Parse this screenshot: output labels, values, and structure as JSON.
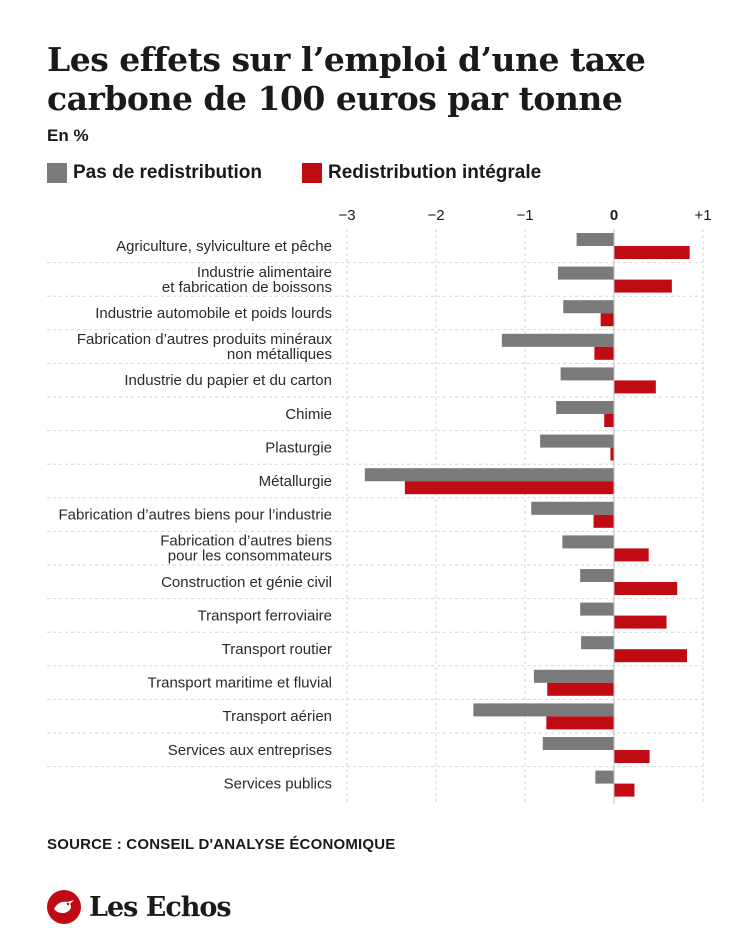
{
  "header": {
    "title_line1": "Les effets sur l’emploi d’une taxe",
    "title_line2": "carbone de 100 euros par tonne",
    "unit": "En %"
  },
  "legend": [
    {
      "label": "Pas de redistribution",
      "color": "#7a7a7a"
    },
    {
      "label": "Redistribution intégrale",
      "color": "#c00a14"
    }
  ],
  "footer": {
    "source": "SOURCE : CONSEIL D'ANALYSE ÉCONOMIQUE",
    "brand": "Les Echos",
    "brand_color": "#c00a14"
  },
  "chart_data": {
    "type": "bar",
    "orientation": "horizontal",
    "title": "Les effets sur l’emploi d’une taxe carbone de 100 euros par tonne",
    "unit": "En %",
    "xlim": [
      -3,
      1
    ],
    "ticks": [
      -3,
      -2,
      -1,
      0,
      1
    ],
    "tick_labels": [
      "−3",
      "−2",
      "−1",
      "0",
      "+1"
    ],
    "grid": true,
    "legend_position": "top-left",
    "categories": [
      [
        "Agriculture, sylviculture et pêche"
      ],
      [
        "Industrie alimentaire",
        "et fabrication de boissons"
      ],
      [
        "Industrie automobile et poids lourds"
      ],
      [
        "Fabrication d’autres produits minéraux",
        "non métalliques"
      ],
      [
        "Industrie du papier et du carton"
      ],
      [
        "Chimie"
      ],
      [
        "Plasturgie"
      ],
      [
        "Métallurgie"
      ],
      [
        "Fabrication d’autres biens pour l’industrie"
      ],
      [
        "Fabrication d’autres biens",
        "pour les consommateurs"
      ],
      [
        "Construction et génie civil"
      ],
      [
        "Transport ferroviaire"
      ],
      [
        "Transport routier"
      ],
      [
        "Transport maritime et fluvial"
      ],
      [
        "Transport aérien"
      ],
      [
        "Services aux entreprises"
      ],
      [
        "Services publics"
      ]
    ],
    "series": [
      {
        "name": "Pas de redistribution",
        "color": "#7a7a7a",
        "values": [
          -0.42,
          -0.63,
          -0.57,
          -1.26,
          -0.6,
          -0.65,
          -0.83,
          -2.8,
          -0.93,
          -0.58,
          -0.38,
          -0.38,
          -0.37,
          -0.9,
          -1.58,
          -0.8,
          -0.21
        ]
      },
      {
        "name": "Redistribution intégrale",
        "color": "#c00a14",
        "values": [
          0.85,
          0.65,
          -0.15,
          -0.22,
          0.47,
          -0.11,
          -0.04,
          -2.35,
          -0.23,
          0.39,
          0.71,
          0.59,
          0.82,
          -0.75,
          -0.76,
          0.4,
          0.23
        ]
      }
    ]
  }
}
